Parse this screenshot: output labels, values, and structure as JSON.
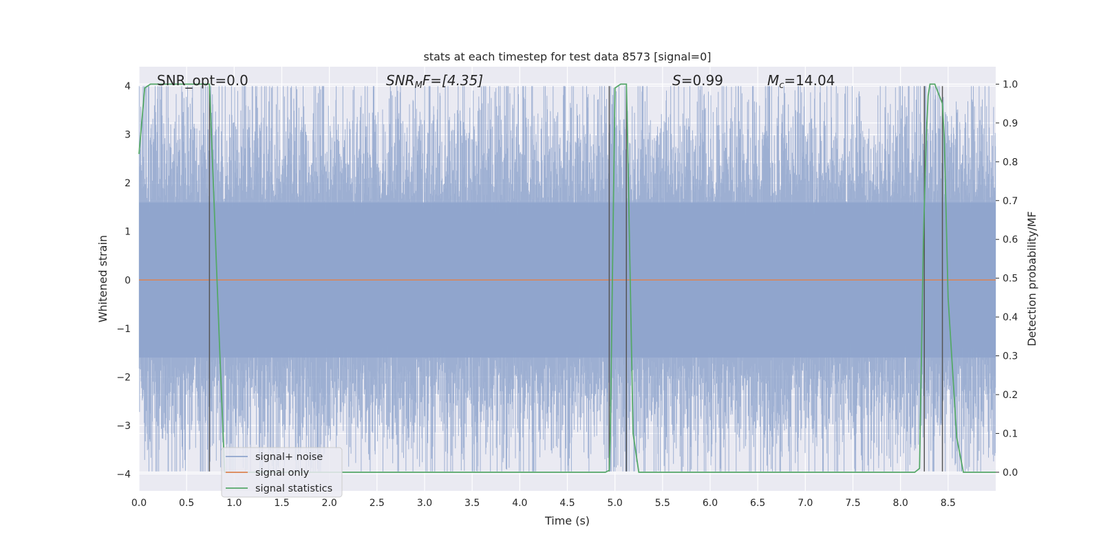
{
  "chart_data": {
    "type": "line",
    "title": "stats at each timestep for test data 8573 [signal=0]",
    "xlabel": "Time (s)",
    "ylabel_left": "Whitened strain",
    "ylabel_right": "Detection probability/MF",
    "xlim": [
      0.0,
      9.0
    ],
    "ylim_left": [
      -4.35,
      4.4
    ],
    "ylim_right": [
      -0.048,
      1.045
    ],
    "x_ticks": [
      "0.0",
      "0.5",
      "1.0",
      "1.5",
      "2.0",
      "2.5",
      "3.0",
      "3.5",
      "4.0",
      "4.5",
      "5.0",
      "5.5",
      "6.0",
      "6.5",
      "7.0",
      "7.5",
      "8.0",
      "8.5"
    ],
    "y_ticks_left": [
      "−4",
      "−3",
      "−2",
      "−1",
      "0",
      "1",
      "2",
      "3",
      "4"
    ],
    "y_ticks_right": [
      "0.0",
      "0.1",
      "0.2",
      "0.3",
      "0.4",
      "0.5",
      "0.6",
      "0.7",
      "0.8",
      "0.9",
      "1.0"
    ],
    "grid": true,
    "legend_placement": "lower-left",
    "annotations": {
      "snr_opt": "SNR_opt=0.0",
      "snr_mf_main": "SNR",
      "snr_mf_sub": "M",
      "snr_mf_tail": "F=[4.35]",
      "s_main": "S",
      "s_tail": "=0.99",
      "mc_main": "M",
      "mc_sub": "c",
      "mc_tail": "=14.04"
    },
    "series": [
      {
        "name": "signal+ noise",
        "color": "#8fa4cc",
        "description_values": "whitened noise, approx. ±2.5 typical, extremes ±4",
        "envelope_abs": 2.5
      },
      {
        "name": "signal only",
        "color": "#dd8452",
        "x": [
          0.0,
          9.0
        ],
        "y": [
          0.0,
          0.0
        ]
      },
      {
        "name": "signal statistics",
        "color": "#55a868",
        "axis": "right",
        "x": [
          0.0,
          0.06,
          0.12,
          0.3,
          0.5,
          0.6,
          0.72,
          0.74,
          0.78,
          0.85,
          0.9,
          1.0,
          4.9,
          4.94,
          4.95,
          5.0,
          5.06,
          5.11,
          5.12,
          5.13,
          5.19,
          5.25,
          6.3,
          6.4,
          8.15,
          8.2,
          8.24,
          8.27,
          8.29,
          8.31,
          8.36,
          8.44,
          8.46,
          8.5,
          8.59,
          8.66,
          8.7,
          9.0
        ],
        "y": [
          0.82,
          0.99,
          1.0,
          1.0,
          1.0,
          1.0,
          1.0,
          1.0,
          0.75,
          0.3,
          0.0,
          0.0,
          0.0,
          0.005,
          0.08,
          0.99,
          1.0,
          1.0,
          1.0,
          0.9,
          0.1,
          0.0,
          0.0,
          0.0,
          0.0,
          0.01,
          0.6,
          0.86,
          0.97,
          1.0,
          1.0,
          0.95,
          0.86,
          0.45,
          0.09,
          0.0,
          0.0,
          0.0
        ]
      }
    ],
    "vertical_markers": [
      {
        "x": 0.74,
        "ymin": -3.95,
        "ymax": 4.0
      },
      {
        "x": 4.94,
        "ymin": -3.95,
        "ymax": 4.0
      },
      {
        "x": 5.12,
        "ymin": -3.95,
        "ymax": 4.0
      },
      {
        "x": 8.25,
        "ymin": -3.95,
        "ymax": 4.0
      },
      {
        "x": 8.44,
        "ymin": -3.95,
        "ymax": 4.0
      }
    ],
    "marker_color": "#555555",
    "background_color": "#eaeaf2",
    "grid_color": "#ffffff"
  }
}
